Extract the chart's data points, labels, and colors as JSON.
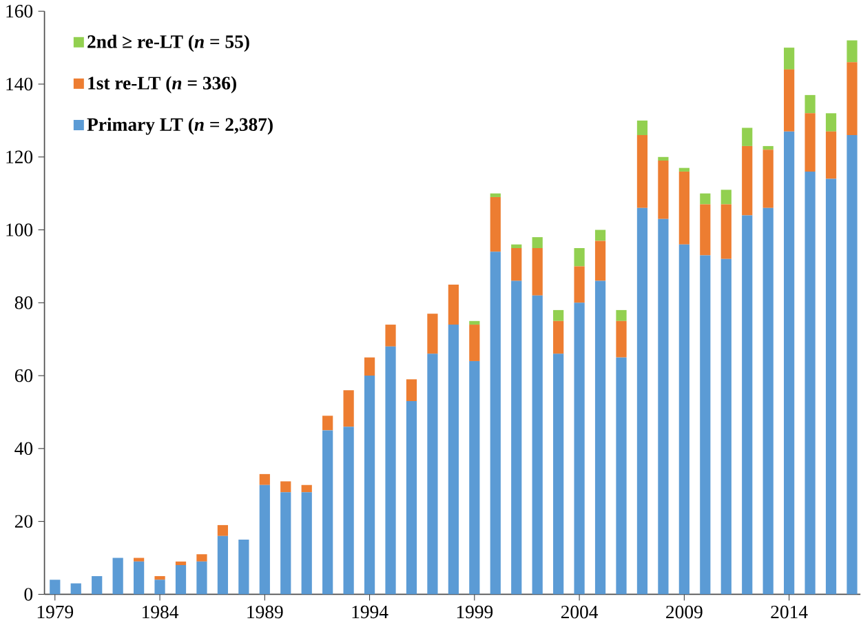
{
  "chart_data": {
    "type": "bar",
    "stacked": true,
    "legend": "top left",
    "x": [
      1979,
      1980,
      1981,
      1982,
      1983,
      1984,
      1985,
      1986,
      1987,
      1988,
      1989,
      1990,
      1991,
      1992,
      1993,
      1994,
      1995,
      1996,
      1997,
      1998,
      1999,
      2000,
      2001,
      2002,
      2003,
      2004,
      2005,
      2006,
      2007,
      2008,
      2009,
      2010,
      2011,
      2012,
      2013,
      2014,
      2015,
      2016,
      2017
    ],
    "series": [
      {
        "name": "Primary LT (*n* = 2,387)",
        "color": "#5b9bd5",
        "values": [
          4,
          3,
          5,
          10,
          9,
          4,
          8,
          9,
          16,
          15,
          30,
          28,
          28,
          45,
          46,
          60,
          68,
          53,
          66,
          74,
          64,
          94,
          86,
          82,
          66,
          80,
          86,
          65,
          106,
          103,
          96,
          93,
          92,
          104,
          106,
          127,
          116,
          114,
          126
        ]
      },
      {
        "name": "1st re-LT (*n* = 336)",
        "color": "#ed7d31",
        "values": [
          0,
          0,
          0,
          0,
          1,
          1,
          1,
          2,
          3,
          0,
          3,
          3,
          2,
          4,
          10,
          5,
          6,
          6,
          11,
          11,
          10,
          15,
          9,
          13,
          9,
          10,
          11,
          10,
          20,
          16,
          20,
          14,
          15,
          19,
          16,
          17,
          16,
          13,
          20
        ]
      },
      {
        "name": "2nd ≥ re-LT (*n* = 55)",
        "color": "#92d050",
        "values": [
          0,
          0,
          0,
          0,
          0,
          0,
          0,
          0,
          0,
          0,
          0,
          0,
          0,
          0,
          0,
          0,
          0,
          0,
          0,
          0,
          1,
          1,
          1,
          3,
          3,
          5,
          3,
          3,
          4,
          1,
          1,
          3,
          4,
          5,
          1,
          6,
          5,
          5,
          6
        ]
      }
    ],
    "xlim": [
      1978.5,
      2017.4
    ],
    "xticks": [
      1979,
      1984,
      1989,
      1994,
      1999,
      2004,
      2009,
      2014
    ],
    "ylim": [
      0,
      160
    ],
    "yticks": [
      0,
      20,
      40,
      60,
      80,
      100,
      120,
      140,
      160
    ]
  }
}
